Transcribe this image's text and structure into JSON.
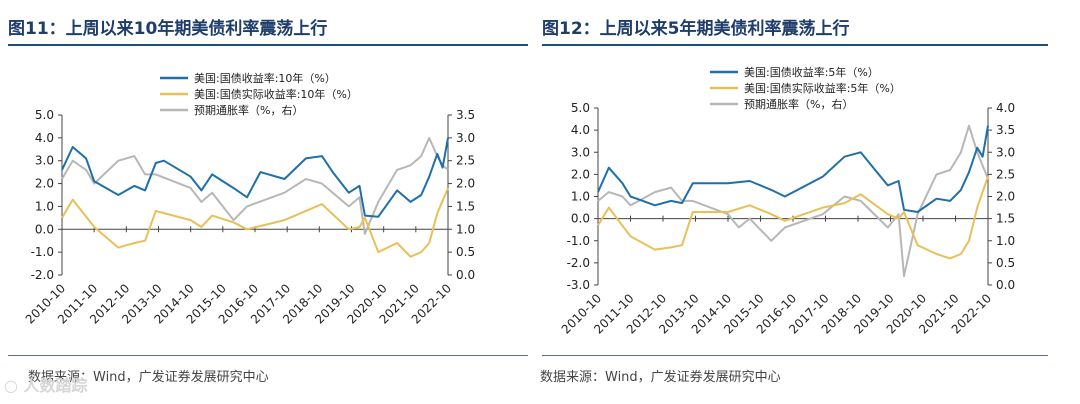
{
  "source_text": "数据来源：Wind，广发证券发展研究中心",
  "watermark": "人数踏踪",
  "chart_data": [
    {
      "type": "line",
      "title": "图11：上周以来10年期美债利率震荡上行",
      "x_ticks": [
        "2010-10",
        "2011-10",
        "2012-10",
        "2013-10",
        "2014-10",
        "2015-10",
        "2016-10",
        "2017-10",
        "2018-10",
        "2019-10",
        "2020-10",
        "2021-10",
        "2022-10"
      ],
      "x_start": "2010-10",
      "x_end": "2022-10",
      "ylim_left": [
        -2.0,
        5.0
      ],
      "ylim_right": [
        0.0,
        3.5
      ],
      "y_ticks_left": [
        "5.0",
        "4.0",
        "3.0",
        "2.0",
        "1.0",
        "0.0",
        "-1.0",
        "-2.0"
      ],
      "y_ticks_right": [
        "3.5",
        "3.0",
        "2.5",
        "2.0",
        "1.5",
        "1.0",
        "0.5",
        "0.0"
      ],
      "legend_position": "top-center",
      "series": [
        {
          "name": "美国:国债收益率:10年（%）",
          "color": "#1f6fa8",
          "axis": "left",
          "x": [
            "2010-10",
            "2011-02",
            "2011-07",
            "2011-10",
            "2012-07",
            "2013-01",
            "2013-05",
            "2013-09",
            "2013-12",
            "2014-10",
            "2015-02",
            "2015-06",
            "2016-02",
            "2016-07",
            "2016-12",
            "2017-09",
            "2018-05",
            "2018-11",
            "2019-03",
            "2019-09",
            "2020-01",
            "2020-03",
            "2020-08",
            "2021-03",
            "2021-08",
            "2021-12",
            "2022-03",
            "2022-06",
            "2022-08",
            "2022-10"
          ],
          "values": [
            2.6,
            3.6,
            3.1,
            2.1,
            1.5,
            1.9,
            1.7,
            2.9,
            3.0,
            2.3,
            1.7,
            2.4,
            1.8,
            1.4,
            2.5,
            2.2,
            3.1,
            3.2,
            2.5,
            1.6,
            1.9,
            0.6,
            0.55,
            1.7,
            1.2,
            1.5,
            2.3,
            3.3,
            2.7,
            4.0
          ]
        },
        {
          "name": "美国:国债实际收益率:10年（%）",
          "color": "#e8c056",
          "axis": "left",
          "x": [
            "2010-10",
            "2011-02",
            "2011-10",
            "2012-07",
            "2013-01",
            "2013-05",
            "2013-09",
            "2014-10",
            "2015-02",
            "2015-06",
            "2016-02",
            "2016-07",
            "2017-09",
            "2018-11",
            "2019-09",
            "2020-01",
            "2020-03",
            "2020-08",
            "2021-03",
            "2021-08",
            "2021-12",
            "2022-03",
            "2022-06",
            "2022-10"
          ],
          "values": [
            0.5,
            1.3,
            0.1,
            -0.8,
            -0.6,
            -0.5,
            0.8,
            0.4,
            0.1,
            0.6,
            0.3,
            0.0,
            0.4,
            1.1,
            0.0,
            0.1,
            0.5,
            -1.0,
            -0.6,
            -1.2,
            -1.0,
            -0.6,
            0.7,
            1.8
          ]
        },
        {
          "name": "预期通胀率（%，右）",
          "color": "#b7b7b7",
          "axis": "right",
          "x": [
            "2010-10",
            "2011-02",
            "2011-07",
            "2011-10",
            "2012-07",
            "2013-01",
            "2013-05",
            "2013-09",
            "2014-10",
            "2015-02",
            "2015-06",
            "2016-02",
            "2016-07",
            "2017-09",
            "2018-05",
            "2018-11",
            "2019-09",
            "2020-01",
            "2020-03",
            "2020-08",
            "2021-03",
            "2021-08",
            "2021-12",
            "2022-03",
            "2022-06",
            "2022-08",
            "2022-10"
          ],
          "values": [
            2.1,
            2.5,
            2.3,
            2.0,
            2.5,
            2.6,
            2.2,
            2.2,
            1.9,
            1.6,
            1.8,
            1.2,
            1.5,
            1.8,
            2.1,
            2.0,
            1.5,
            1.7,
            0.9,
            1.6,
            2.3,
            2.4,
            2.6,
            3.0,
            2.6,
            2.4,
            2.3
          ]
        }
      ]
    },
    {
      "type": "line",
      "title": "图12：上周以来5年期美债利率震荡上行",
      "x_ticks": [
        "2010-10",
        "2011-10",
        "2012-10",
        "2013-10",
        "2014-10",
        "2015-10",
        "2016-10",
        "2017-10",
        "2018-10",
        "2019-10",
        "2020-10",
        "2021-10",
        "2022-10"
      ],
      "x_start": "2010-10",
      "x_end": "2022-10",
      "ylim_left": [
        -3.0,
        5.0
      ],
      "ylim_right": [
        0.0,
        4.0
      ],
      "y_ticks_left": [
        "5.0",
        "4.0",
        "3.0",
        "2.0",
        "1.0",
        "0.0",
        "-1.0",
        "-2.0",
        "-3.0"
      ],
      "y_ticks_right": [
        "4.0",
        "3.5",
        "3.0",
        "2.5",
        "2.0",
        "1.5",
        "1.0",
        "0.5",
        "0.0"
      ],
      "legend_position": "top-center",
      "series": [
        {
          "name": "美国:国债收益率:5年（%）",
          "color": "#1f6fa8",
          "axis": "left",
          "x": [
            "2010-10",
            "2011-02",
            "2011-07",
            "2011-10",
            "2012-07",
            "2013-01",
            "2013-05",
            "2013-09",
            "2014-10",
            "2015-06",
            "2016-02",
            "2016-07",
            "2017-09",
            "2018-05",
            "2018-11",
            "2019-03",
            "2019-09",
            "2020-01",
            "2020-03",
            "2020-08",
            "2021-03",
            "2021-08",
            "2021-12",
            "2022-03",
            "2022-06",
            "2022-08",
            "2022-10"
          ],
          "values": [
            1.2,
            2.3,
            1.6,
            1.0,
            0.6,
            0.8,
            0.7,
            1.6,
            1.6,
            1.7,
            1.3,
            1.0,
            1.9,
            2.8,
            3.0,
            2.4,
            1.5,
            1.7,
            0.4,
            0.3,
            0.9,
            0.8,
            1.3,
            2.1,
            3.2,
            2.8,
            4.2
          ]
        },
        {
          "name": "美国:国债实际收益率:5年（%）",
          "color": "#e8c056",
          "axis": "left",
          "x": [
            "2010-10",
            "2011-02",
            "2011-10",
            "2012-07",
            "2013-01",
            "2013-05",
            "2013-09",
            "2014-10",
            "2015-06",
            "2016-02",
            "2016-07",
            "2017-09",
            "2018-05",
            "2018-11",
            "2019-09",
            "2020-01",
            "2020-03",
            "2020-08",
            "2021-03",
            "2021-08",
            "2021-12",
            "2022-03",
            "2022-06",
            "2022-10"
          ],
          "values": [
            -0.3,
            0.5,
            -0.8,
            -1.4,
            -1.3,
            -1.2,
            0.3,
            0.3,
            0.6,
            0.2,
            -0.1,
            0.5,
            0.7,
            1.1,
            0.2,
            0.0,
            0.3,
            -1.2,
            -1.6,
            -1.8,
            -1.6,
            -1.0,
            0.5,
            1.9
          ]
        },
        {
          "name": "预期通胀率（%，右）",
          "color": "#b7b7b7",
          "axis": "right",
          "x": [
            "2010-10",
            "2011-02",
            "2011-07",
            "2011-10",
            "2012-07",
            "2013-01",
            "2013-05",
            "2013-09",
            "2014-10",
            "2015-02",
            "2015-06",
            "2016-02",
            "2016-07",
            "2017-09",
            "2018-05",
            "2018-11",
            "2019-09",
            "2020-01",
            "2020-03",
            "2020-08",
            "2021-03",
            "2021-08",
            "2021-12",
            "2022-03",
            "2022-06",
            "2022-08",
            "2022-10"
          ],
          "values": [
            1.9,
            2.1,
            2.0,
            1.8,
            2.1,
            2.2,
            1.9,
            1.9,
            1.6,
            1.3,
            1.5,
            1.0,
            1.3,
            1.6,
            2.0,
            1.9,
            1.3,
            1.6,
            0.2,
            1.6,
            2.5,
            2.6,
            3.0,
            3.6,
            3.0,
            2.7,
            2.4
          ]
        }
      ]
    }
  ]
}
